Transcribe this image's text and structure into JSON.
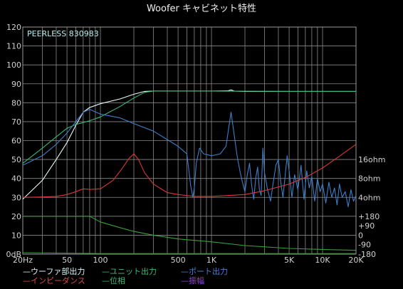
{
  "chart_data": {
    "type": "line",
    "title": "Woofer キャビネット特性",
    "annotation": "PEERLESS 830983",
    "x_scale": "log",
    "xlim": [
      20,
      20000
    ],
    "ylim": [
      0,
      120
    ],
    "grid": true,
    "x_ticks": [
      {
        "value": 20,
        "label": "20Hz"
      },
      {
        "value": 50,
        "label": "50"
      },
      {
        "value": 100,
        "label": "100"
      },
      {
        "value": 500,
        "label": "500"
      },
      {
        "value": 1000,
        "label": "1K"
      },
      {
        "value": 5000,
        "label": "5K"
      },
      {
        "value": 10000,
        "label": "10K"
      },
      {
        "value": 20000,
        "label": "20K"
      }
    ],
    "y_ticks": [
      {
        "value": 0,
        "label": "0dB"
      },
      {
        "value": 10,
        "label": "10"
      },
      {
        "value": 20,
        "label": "20"
      },
      {
        "value": 30,
        "label": "30"
      },
      {
        "value": 40,
        "label": "40"
      },
      {
        "value": 50,
        "label": "50"
      },
      {
        "value": 60,
        "label": "60"
      },
      {
        "value": 70,
        "label": "70"
      },
      {
        "value": 80,
        "label": "80"
      },
      {
        "value": 90,
        "label": "90"
      },
      {
        "value": 100,
        "label": "100"
      },
      {
        "value": 110,
        "label": "110"
      },
      {
        "value": 120,
        "label": "120"
      }
    ],
    "right_ticks": [
      {
        "value": 50,
        "label": "16ohm"
      },
      {
        "value": 40,
        "label": "8ohm"
      },
      {
        "value": 30,
        "label": "4ohm"
      },
      {
        "value": 20,
        "label": "+180"
      },
      {
        "value": 15,
        "label": "+90"
      },
      {
        "value": 10,
        "label": "0"
      },
      {
        "value": 5,
        "label": "-90"
      },
      {
        "value": 0,
        "label": "-180"
      }
    ],
    "series": [
      {
        "name": "ウーファ部出力",
        "color": "#e8f8f8",
        "x": [
          20,
          30,
          40,
          50,
          60,
          70,
          80,
          100,
          150,
          200,
          250,
          300,
          500,
          1000,
          1400,
          1500,
          1600,
          2000,
          5000,
          10000,
          20000
        ],
        "y": [
          29,
          39,
          50,
          59,
          68,
          75,
          77.5,
          79.5,
          82,
          84.5,
          86,
          86.2,
          86.2,
          86.2,
          86.3,
          86.8,
          86.2,
          86,
          86,
          86,
          86
        ]
      },
      {
        "name": "ユニット出力",
        "color": "#3cb878",
        "x": [
          20,
          30,
          40,
          50,
          60,
          70,
          80,
          100,
          120,
          150,
          200,
          250,
          300,
          500,
          1000,
          5000,
          20000
        ],
        "y": [
          48,
          56,
          62,
          66.5,
          68.5,
          69.5,
          70.5,
          72.5,
          75,
          78,
          82.5,
          85.5,
          86.2,
          86.2,
          86.2,
          86,
          86
        ]
      },
      {
        "name": "ポート出力",
        "color": "#3d7ec8",
        "x": [
          20,
          30,
          40,
          50,
          60,
          70,
          80,
          100,
          150,
          200,
          300,
          500,
          600,
          650,
          680,
          700,
          730,
          780,
          850,
          1000,
          1200,
          1350,
          1500,
          1600,
          1700,
          1800,
          1900,
          2000,
          2100,
          2200,
          2300,
          2400,
          2500,
          2600,
          2700,
          2800,
          2900,
          3000,
          3200,
          3400,
          3600,
          3800,
          4000,
          4200,
          4400,
          4600,
          4800,
          5000,
          5300,
          5600,
          6000,
          6400,
          6800,
          7200,
          7600,
          8000,
          8500,
          9000,
          9500,
          10000,
          10700,
          11400,
          12100,
          12800,
          13500,
          14200,
          15000,
          16000,
          17000,
          18000,
          19000,
          20000
        ],
        "y": [
          47,
          52,
          58,
          64,
          70,
          75,
          76.5,
          74,
          72,
          69,
          65,
          57,
          53,
          36,
          30,
          35,
          48,
          56,
          53,
          52,
          53,
          57,
          75,
          63,
          52,
          44,
          38,
          33,
          42,
          48,
          36,
          29,
          40,
          46,
          34,
          31,
          56,
          43,
          34,
          28,
          38,
          47,
          50,
          38,
          30,
          41,
          52,
          44,
          30,
          42,
          34,
          47,
          29,
          44,
          35,
          41,
          28,
          40,
          33,
          37,
          27,
          38,
          30,
          35,
          26,
          37,
          30,
          33,
          25,
          34,
          28,
          31
        ]
      },
      {
        "name": "インピーダンス",
        "color": "#d83838",
        "x": [
          20,
          30,
          40,
          50,
          60,
          70,
          80,
          100,
          130,
          160,
          180,
          200,
          220,
          250,
          300,
          400,
          500,
          700,
          1000,
          2000,
          3000,
          5000,
          7000,
          10000,
          14000,
          20000
        ],
        "y": [
          30,
          30.2,
          30.5,
          31.5,
          33,
          34.5,
          34.2,
          34.5,
          39,
          46,
          50.5,
          53,
          50,
          43,
          37,
          32.5,
          31.5,
          30.5,
          30.5,
          31.5,
          33.5,
          37,
          40.5,
          45.5,
          51.5,
          58
        ]
      },
      {
        "name": "位相",
        "color": "#38a038",
        "x": [
          20,
          80,
          100,
          150,
          200,
          300,
          500,
          1000,
          2000,
          5000,
          10000,
          20000
        ],
        "y": [
          20,
          20,
          17,
          14,
          12,
          10,
          8,
          6.5,
          4.5,
          3,
          2.5,
          2
        ]
      },
      {
        "name": "振幅",
        "color": "#2a8a2a",
        "x": [
          20,
          40,
          80,
          100,
          200,
          1000,
          10000,
          20000
        ],
        "y": [
          0.8,
          0.6,
          0.4,
          0.3,
          0.3,
          0.3,
          0.3,
          0.3
        ]
      }
    ],
    "legend": [
      {
        "label": "ウーファ部出力",
        "color": "#d8f4f4",
        "row": 1,
        "col": 1
      },
      {
        "label": "ユニット出力",
        "color": "#3cb878",
        "row": 1,
        "col": 2
      },
      {
        "label": "ポート出力",
        "color": "#4a7fcc",
        "row": 1,
        "col": 3
      },
      {
        "label": "インピーダンス",
        "color": "#e04848",
        "row": 2,
        "col": 1
      },
      {
        "label": "位相",
        "color": "#3cb878",
        "row": 2,
        "col": 2
      },
      {
        "label": "振幅",
        "color": "#9040e0",
        "row": 2,
        "col": 3
      }
    ]
  }
}
